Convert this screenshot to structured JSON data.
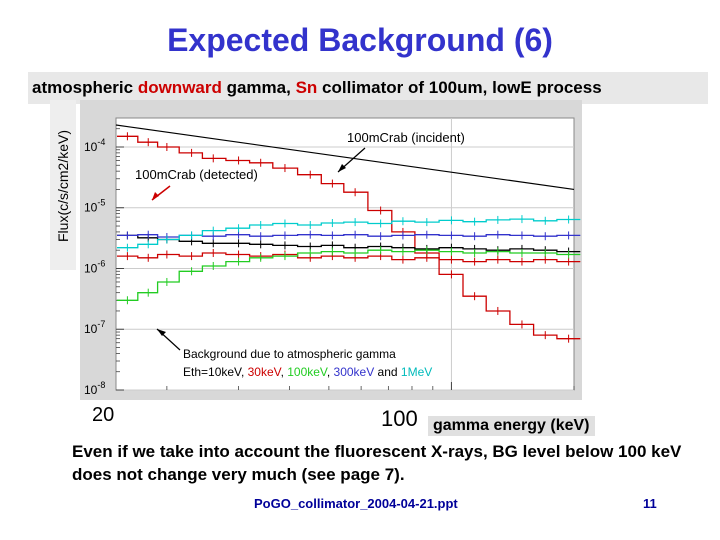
{
  "slide": {
    "title": "Expected Background (6)",
    "subtitle_parts": [
      "atmospheric ",
      "downward",
      " gamma, ",
      "Sn",
      " collimator of 100um, lowE process"
    ],
    "y_axis_label": "Flux(c/s/cm2/keV)",
    "x_tick_low": "20",
    "x_tick_high": "100",
    "x_axis_label": "gamma energy (keV)",
    "note": "Even if we take into account the fluorescent X-rays, BG level below 100 keV does not change very much (see page 7).",
    "footer": "PoGO_collimator_2004-04-21.ppt",
    "page_number": "11"
  },
  "chart_data": {
    "type": "line",
    "x_scale": "log",
    "y_scale": "log",
    "x_unit": "keV",
    "xlim": [
      15,
      200
    ],
    "ylim": [
      1e-08,
      0.0003
    ],
    "y_tick_labels": [
      {
        "value": 0.0001,
        "base": "10",
        "exp": "-4"
      },
      {
        "value": 1e-05,
        "base": "10",
        "exp": "-5"
      },
      {
        "value": 1e-06,
        "base": "10",
        "exp": "-6"
      },
      {
        "value": 1e-07,
        "base": "10",
        "exp": "-7"
      },
      {
        "value": 1e-08,
        "base": "10",
        "exp": "-8"
      }
    ],
    "annotations": {
      "incident": "100mCrab (incident)",
      "detected": "100mCrab (detected)",
      "bg_line1": "Background due to atmospheric gamma",
      "bg_parts": [
        {
          "text": "Eth=10keV, ",
          "color": "#000000"
        },
        {
          "text": "30keV",
          "color": "#cc0000"
        },
        {
          "text": ", ",
          "color": "#000000"
        },
        {
          "text": "100keV",
          "color": "#22cc22"
        },
        {
          "text": ", ",
          "color": "#000000"
        },
        {
          "text": "300keV",
          "color": "#3333cc"
        },
        {
          "text": " and ",
          "color": "#000000"
        },
        {
          "text": "1MeV",
          "color": "#00bbbb"
        }
      ]
    },
    "incident_line": {
      "name": "100mCrab (incident)",
      "color": "#000000",
      "x": [
        15,
        200
      ],
      "y": [
        0.00023,
        2e-05
      ]
    },
    "series": [
      {
        "name": "100mCrab (detected)",
        "color": "#cc0000",
        "x": [
          16,
          18,
          20,
          23,
          26,
          30,
          34,
          39,
          45,
          51,
          58,
          67,
          76,
          87,
          100,
          114,
          130,
          149,
          170,
          194
        ],
        "y": [
          0.00015,
          0.00012,
          0.0001,
          8e-05,
          6.5e-05,
          6e-05,
          5.5e-05,
          4.5e-05,
          3.5e-05,
          2.5e-05,
          1.8e-05,
          9e-06,
          4e-06,
          1.8e-06,
          8e-07,
          3.5e-07,
          2e-07,
          1.2e-07,
          8e-08,
          7e-08
        ]
      },
      {
        "name": "Eth=10keV",
        "color": "#000000",
        "x": [
          16,
          18,
          20,
          23,
          26,
          30,
          34,
          39,
          45,
          51,
          58,
          67,
          76,
          87,
          100,
          114,
          130,
          149,
          170,
          194
        ],
        "y": [
          3.5e-06,
          3.2e-06,
          3e-06,
          2.8e-06,
          2.6e-06,
          2.6e-06,
          2.5e-06,
          2.4e-06,
          2.3e-06,
          2.4e-06,
          2.2e-06,
          2.3e-06,
          2.2e-06,
          2.1e-06,
          2.2e-06,
          2.1e-06,
          2e-06,
          2.1e-06,
          2e-06,
          1.9e-06
        ]
      },
      {
        "name": "Eth=30keV",
        "color": "#cc0000",
        "x": [
          16,
          18,
          20,
          23,
          26,
          30,
          34,
          39,
          45,
          51,
          58,
          67,
          76,
          87,
          100,
          114,
          130,
          149,
          170,
          194
        ],
        "y": [
          1.6e-06,
          1.5e-06,
          1.7e-06,
          1.6e-06,
          1.8e-06,
          1.7e-06,
          1.6e-06,
          1.7e-06,
          1.5e-06,
          1.6e-06,
          1.5e-06,
          1.6e-06,
          1.4e-06,
          1.5e-06,
          1.4e-06,
          1.3e-06,
          1.4e-06,
          1.3e-06,
          1.4e-06,
          1.3e-06
        ]
      },
      {
        "name": "Eth=100keV",
        "color": "#22cc22",
        "x": [
          16,
          18,
          20,
          23,
          26,
          30,
          34,
          39,
          45,
          51,
          58,
          67,
          76,
          87,
          100,
          114,
          130,
          149,
          170,
          194
        ],
        "y": [
          3e-07,
          4e-07,
          6e-07,
          9e-07,
          1.1e-06,
          1.3e-06,
          1.5e-06,
          1.6e-06,
          1.8e-06,
          1.9e-06,
          1.8e-06,
          2e-06,
          1.9e-06,
          2e-06,
          1.9e-06,
          1.8e-06,
          1.9e-06,
          1.8e-06,
          1.8e-06,
          1.7e-06
        ]
      },
      {
        "name": "Eth=300keV",
        "color": "#3333cc",
        "x": [
          16,
          18,
          20,
          23,
          26,
          30,
          34,
          39,
          45,
          51,
          58,
          67,
          76,
          87,
          100,
          114,
          130,
          149,
          170,
          194
        ],
        "y": [
          3.5e-06,
          3.6e-06,
          3.3e-06,
          3.5e-06,
          3.4e-06,
          3.6e-06,
          3.4e-06,
          3.5e-06,
          3.6e-06,
          3.5e-06,
          3.6e-06,
          3.4e-06,
          3.5e-06,
          3.6e-06,
          3.5e-06,
          3.4e-06,
          3.6e-06,
          3.5e-06,
          3.4e-06,
          3.5e-06
        ]
      },
      {
        "name": "Eth=1MeV",
        "color": "#00cccc",
        "x": [
          16,
          18,
          20,
          23,
          26,
          30,
          34,
          39,
          45,
          51,
          58,
          67,
          76,
          87,
          100,
          114,
          130,
          149,
          170,
          194
        ],
        "y": [
          2.2e-06,
          2.5e-06,
          3e-06,
          3.5e-06,
          4.2e-06,
          4.6e-06,
          5.2e-06,
          5.5e-06,
          5.2e-06,
          5.6e-06,
          5.8e-06,
          5.5e-06,
          6e-06,
          5.8e-06,
          6.2e-06,
          5.9e-06,
          6.3e-06,
          6.5e-06,
          6.1e-06,
          6.4e-06
        ]
      }
    ]
  }
}
